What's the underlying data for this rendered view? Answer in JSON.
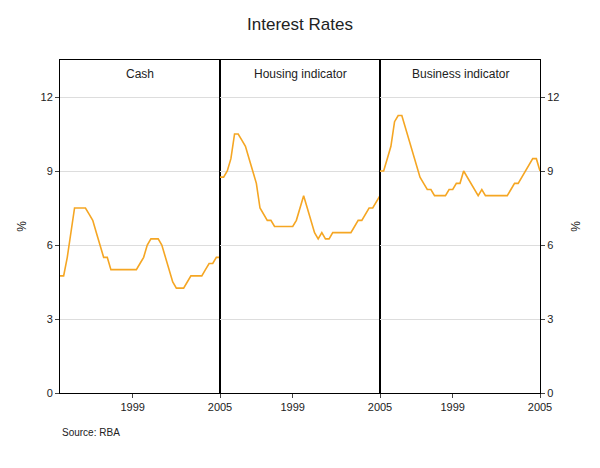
{
  "title": "Interest Rates",
  "annotations": [
    "Source: RBA"
  ],
  "chart_data": [
    {
      "type": "line",
      "title": "Cash",
      "x": [
        1994,
        1994.25,
        1994.5,
        1994.75,
        1995,
        1995.25,
        1995.5,
        1995.75,
        1996,
        1996.25,
        1996.5,
        1996.75,
        1997,
        1997.25,
        1997.5,
        1997.75,
        1998,
        1998.25,
        1998.5,
        1998.75,
        1999,
        1999.25,
        1999.5,
        1999.75,
        2000,
        2000.25,
        2000.5,
        2000.75,
        2001,
        2001.25,
        2001.5,
        2001.75,
        2002,
        2002.25,
        2002.5,
        2002.75,
        2003,
        2003.25,
        2003.5,
        2003.75,
        2004,
        2004.25,
        2004.5,
        2004.75,
        2005
      ],
      "values": [
        4.75,
        4.75,
        5.5,
        6.5,
        7.5,
        7.5,
        7.5,
        7.5,
        7.25,
        7.0,
        6.5,
        6.0,
        5.5,
        5.5,
        5.0,
        5.0,
        5.0,
        5.0,
        5.0,
        5.0,
        5.0,
        5.0,
        5.25,
        5.5,
        6.0,
        6.25,
        6.25,
        6.25,
        6.0,
        5.5,
        5.0,
        4.5,
        4.25,
        4.25,
        4.25,
        4.5,
        4.75,
        4.75,
        4.75,
        4.75,
        5.0,
        5.25,
        5.25,
        5.5,
        5.5
      ],
      "color": "#F5A623",
      "xlim": [
        1994,
        2005
      ],
      "xticks": [
        1999,
        2005
      ],
      "ylim": [
        0,
        13.5
      ],
      "yticks": [
        0,
        3,
        6,
        9,
        12
      ],
      "ylabel": "%",
      "grid": "y"
    },
    {
      "type": "line",
      "title": "Housing indicator",
      "x": [
        1994,
        1994.25,
        1994.5,
        1994.75,
        1995,
        1995.25,
        1995.5,
        1995.75,
        1996,
        1996.25,
        1996.5,
        1996.75,
        1997,
        1997.25,
        1997.5,
        1997.75,
        1998,
        1998.25,
        1998.5,
        1998.75,
        1999,
        1999.25,
        1999.5,
        1999.75,
        2000,
        2000.25,
        2000.5,
        2000.75,
        2001,
        2001.25,
        2001.5,
        2001.75,
        2002,
        2002.25,
        2002.5,
        2002.75,
        2003,
        2003.25,
        2003.5,
        2003.75,
        2004,
        2004.25,
        2004.5,
        2004.75,
        2005
      ],
      "values": [
        8.75,
        8.75,
        9.0,
        9.5,
        10.5,
        10.5,
        10.25,
        10.0,
        9.5,
        9.0,
        8.5,
        7.5,
        7.25,
        7.0,
        7.0,
        6.75,
        6.75,
        6.75,
        6.75,
        6.75,
        6.75,
        7.0,
        7.5,
        8.0,
        7.5,
        7.0,
        6.5,
        6.25,
        6.5,
        6.25,
        6.25,
        6.5,
        6.5,
        6.5,
        6.5,
        6.5,
        6.5,
        6.75,
        7.0,
        7.0,
        7.25,
        7.5,
        7.5,
        7.75,
        8.0
      ],
      "color": "#F5A623",
      "xlim": [
        1994,
        2005
      ],
      "xticks": [
        1999,
        2005
      ],
      "ylim": [
        0,
        13.5
      ],
      "yticks": [
        0,
        3,
        6,
        9,
        12
      ],
      "tick_labels": "x",
      "grid": "y"
    },
    {
      "type": "line",
      "title": "Business indicator",
      "x": [
        1994,
        1994.25,
        1994.5,
        1994.75,
        1995,
        1995.25,
        1995.5,
        1995.75,
        1996,
        1996.25,
        1996.5,
        1996.75,
        1997,
        1997.25,
        1997.5,
        1997.75,
        1998,
        1998.25,
        1998.5,
        1998.75,
        1999,
        1999.25,
        1999.5,
        1999.75,
        2000,
        2000.25,
        2000.5,
        2000.75,
        2001,
        2001.25,
        2001.5,
        2001.75,
        2002,
        2002.25,
        2002.5,
        2002.75,
        2003,
        2003.25,
        2003.5,
        2003.75,
        2004,
        2004.25,
        2004.5,
        2004.75,
        2005
      ],
      "values": [
        9.0,
        9.0,
        9.5,
        10.0,
        11.0,
        11.25,
        11.25,
        10.75,
        10.25,
        9.75,
        9.25,
        8.75,
        8.5,
        8.25,
        8.25,
        8.0,
        8.0,
        8.0,
        8.0,
        8.25,
        8.25,
        8.5,
        8.5,
        9.0,
        8.75,
        8.5,
        8.25,
        8.0,
        8.25,
        8.0,
        8.0,
        8.0,
        8.0,
        8.0,
        8.0,
        8.0,
        8.25,
        8.5,
        8.5,
        8.75,
        9.0,
        9.25,
        9.5,
        9.5,
        9.0
      ],
      "color": "#F5A623",
      "xlim": [
        1994,
        2005
      ],
      "xticks": [
        1999,
        2005
      ],
      "ylim": [
        0,
        13.5
      ],
      "yticks": [
        0,
        3,
        6,
        9,
        12
      ],
      "ylabel": "%",
      "grid": "y"
    }
  ]
}
